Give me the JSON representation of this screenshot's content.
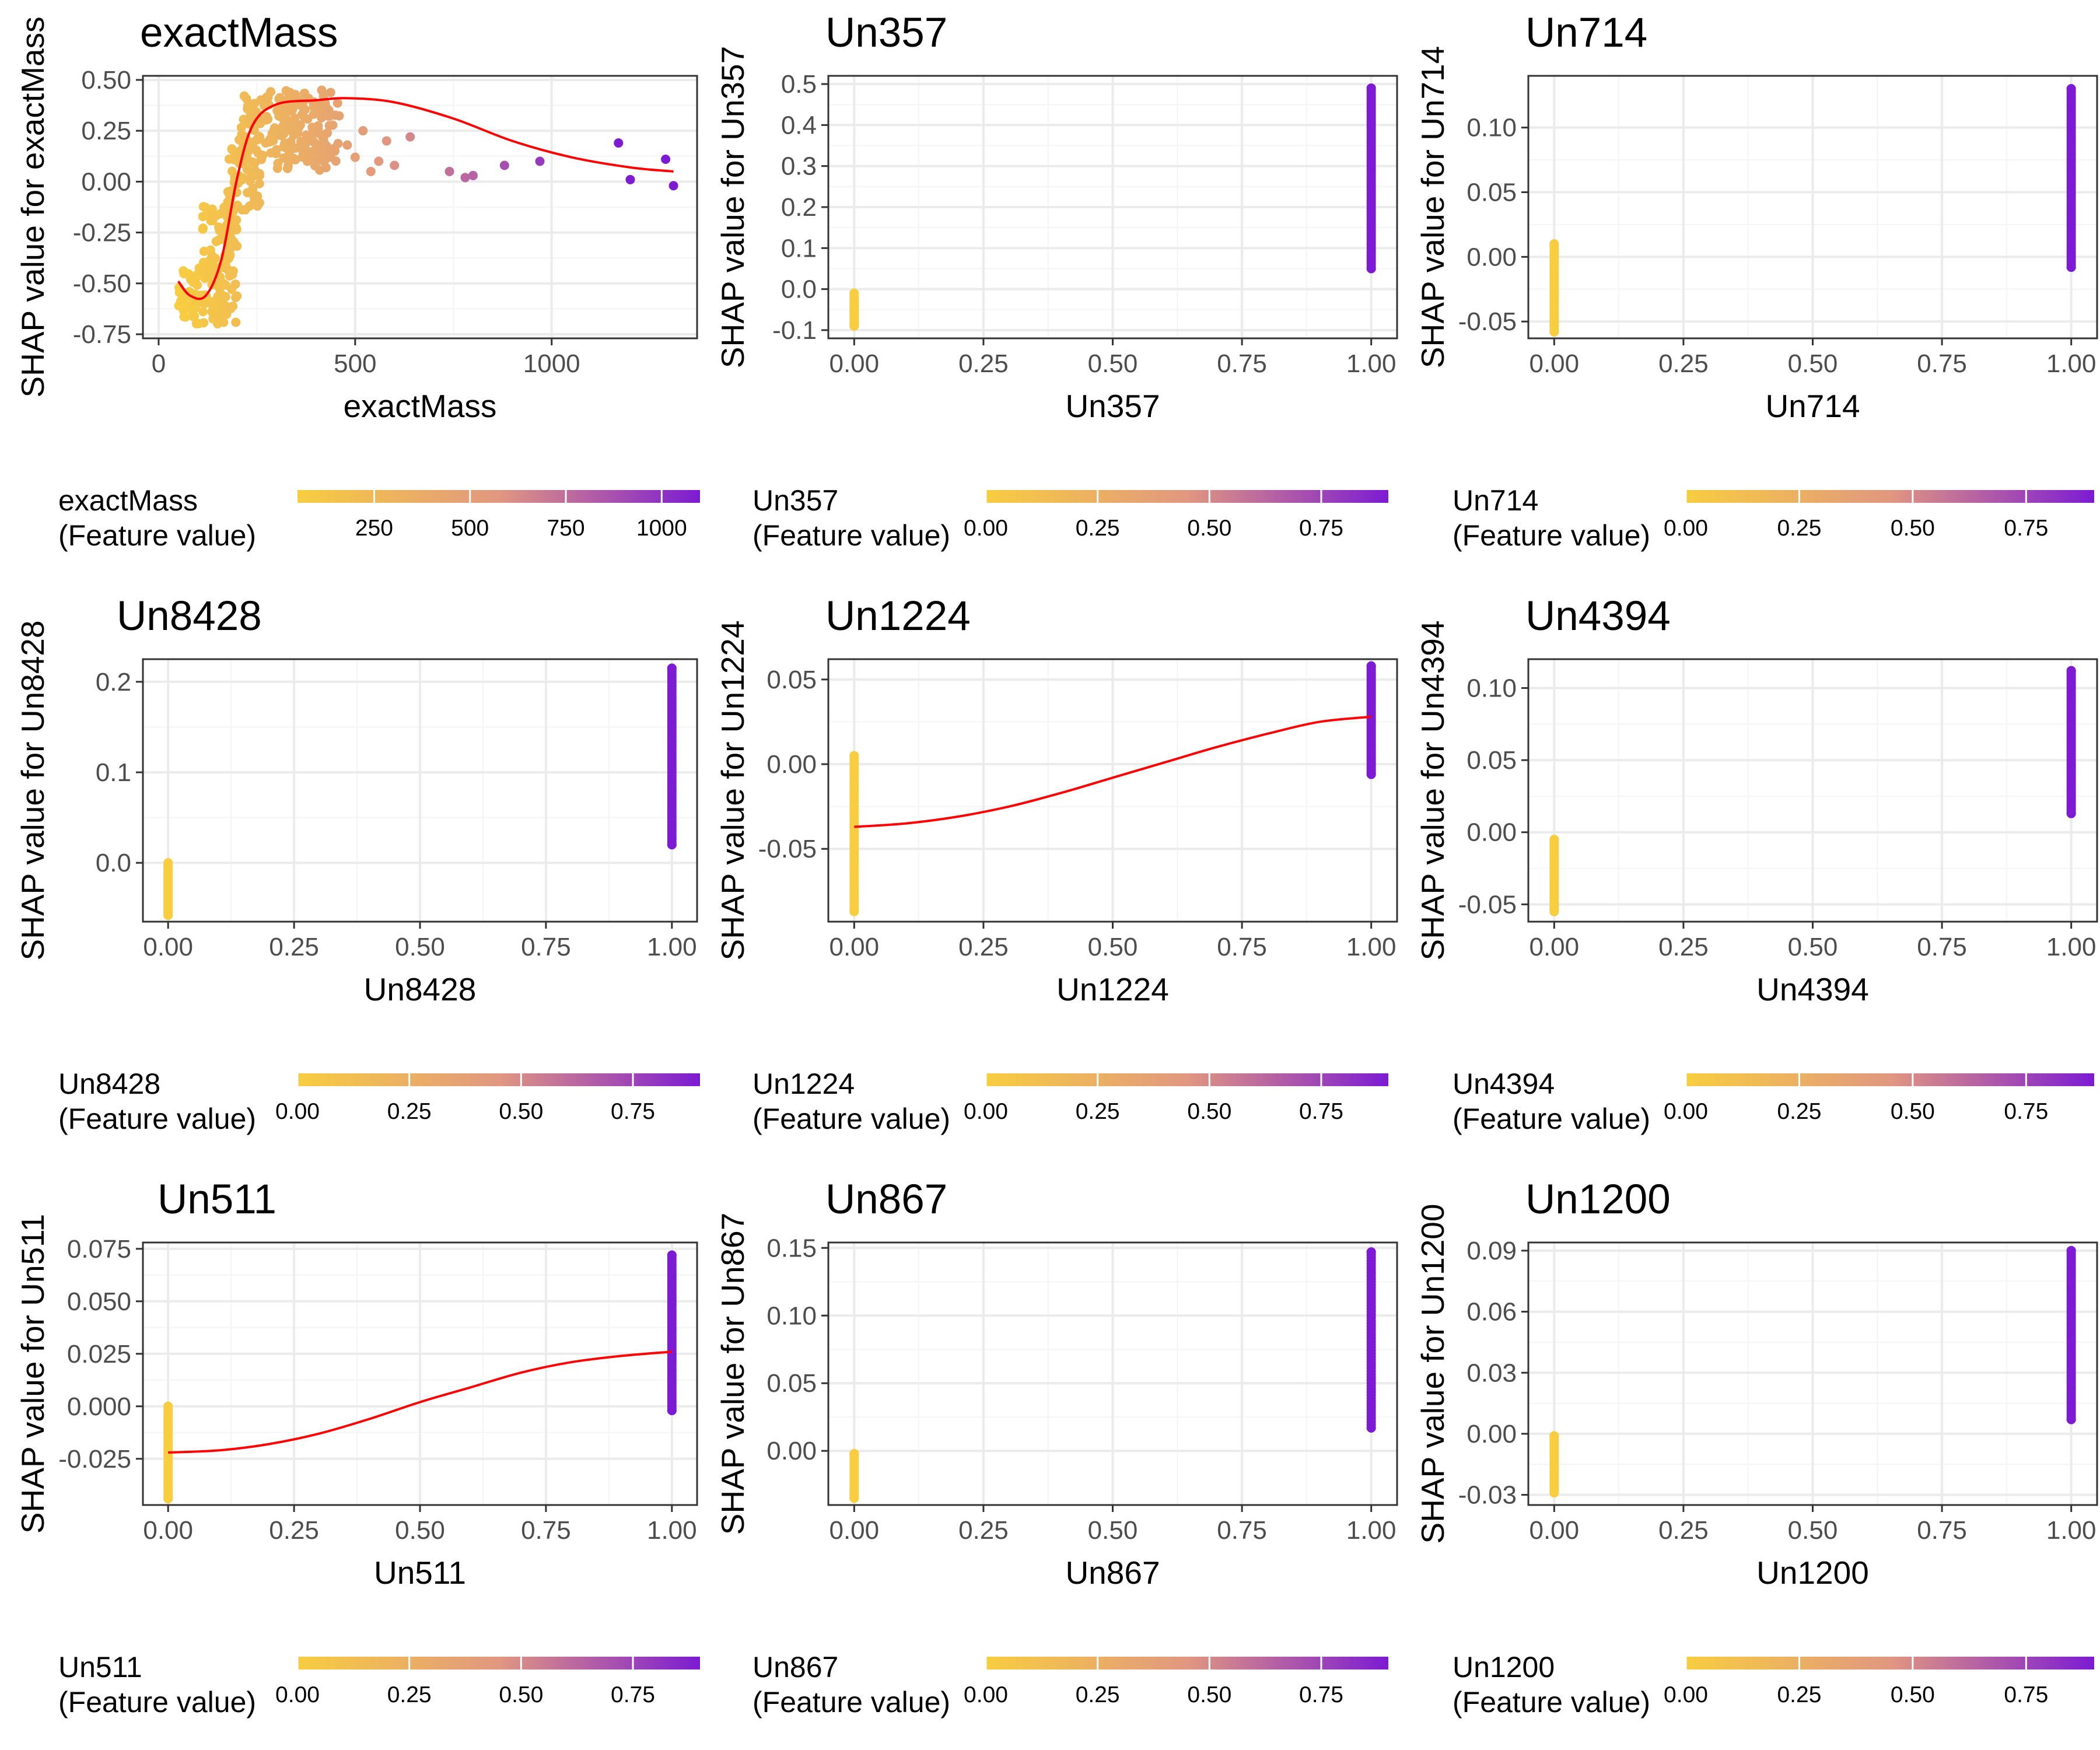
{
  "palette": {
    "low": "#F8CD40",
    "mid": "#E19780",
    "high": "#7C1BD3",
    "smooth": "#FF0000",
    "grid_major": "#EBEBEB",
    "grid_minor": "#F5F5F5",
    "panel_border": "#333333"
  },
  "chart_data": [
    {
      "type": "scatter",
      "title": "exactMass",
      "xlabel": "exactMass",
      "ylabel": "SHAP value for exactMass",
      "xlim": [
        -40,
        1370
      ],
      "ylim": [
        -0.77,
        0.52
      ],
      "x_ticks": [
        "0",
        "500",
        "1000"
      ],
      "y_ticks": [
        "-0.75",
        "-0.50",
        "-0.25",
        "0.00",
        "0.25",
        "0.50"
      ],
      "grid": true,
      "smooth_line": true,
      "points": {
        "clusters": [
          {
            "x": [
              50,
              200
            ],
            "y": [
              -0.7,
              -0.42
            ],
            "n": 110
          },
          {
            "x": [
              110,
              200
            ],
            "y": [
              -0.45,
              -0.12
            ],
            "n": 70
          },
          {
            "x": [
              175,
              260
            ],
            "y": [
              -0.15,
              0.22
            ],
            "n": 60
          },
          {
            "x": [
              210,
              440
            ],
            "y": [
              0.1,
              0.45
            ],
            "n": 170
          },
          {
            "x": [
              300,
              460
            ],
            "y": [
              0.05,
              0.4
            ],
            "n": 50
          }
        ],
        "outliers": [
          [
            480,
            0.18
          ],
          [
            500,
            0.12
          ],
          [
            520,
            0.25
          ],
          [
            540,
            0.05
          ],
          [
            560,
            0.1
          ],
          [
            580,
            0.2
          ],
          [
            600,
            0.08
          ],
          [
            640,
            0.22
          ],
          [
            740,
            0.05
          ],
          [
            780,
            0.02
          ],
          [
            800,
            0.03
          ],
          [
            880,
            0.08
          ],
          [
            970,
            0.1
          ],
          [
            1170,
            0.19
          ],
          [
            1200,
            0.01
          ],
          [
            1290,
            0.11
          ],
          [
            1310,
            -0.02
          ]
        ]
      },
      "smooth": {
        "x": [
          50,
          80,
          120,
          160,
          200,
          240,
          300,
          400,
          480,
          600,
          750,
          900,
          1050,
          1200,
          1310
        ],
        "y": [
          -0.49,
          -0.56,
          -0.56,
          -0.38,
          0.02,
          0.28,
          0.38,
          0.4,
          0.41,
          0.39,
          0.31,
          0.2,
          0.12,
          0.07,
          0.05
        ]
      },
      "legend": {
        "title_line1": "exactMass",
        "title_line2": "(Feature value)",
        "range": [
          50,
          1100
        ],
        "ticks": [
          "250",
          "500",
          "750",
          "1000"
        ],
        "tick_values": [
          250,
          500,
          750,
          1000
        ]
      }
    },
    {
      "type": "scatter",
      "title": "Un357",
      "xlabel": "Un357",
      "ylabel": "SHAP value for Un357",
      "xlim": [
        -0.05,
        1.05
      ],
      "ylim": [
        -0.12,
        0.52
      ],
      "x_ticks": [
        "0.00",
        "0.25",
        "0.50",
        "0.75",
        "1.00"
      ],
      "y_ticks": [
        "-0.1",
        "0.0",
        "0.1",
        "0.2",
        "0.3",
        "0.4",
        "0.5"
      ],
      "grid": true,
      "smooth_line": false,
      "groups": [
        {
          "x": 0,
          "y_range": [
            -0.09,
            -0.01
          ],
          "n": 40
        },
        {
          "x": 1,
          "y_range": [
            0.05,
            0.49
          ],
          "n": 70
        }
      ],
      "legend": {
        "title_line1": "Un357",
        "title_line2": "(Feature value)",
        "range": [
          0,
          0.9
        ],
        "ticks": [
          "0.00",
          "0.25",
          "0.50",
          "0.75"
        ],
        "tick_values": [
          0,
          0.25,
          0.5,
          0.75
        ]
      }
    },
    {
      "type": "scatter",
      "title": "Un714",
      "xlabel": "Un714",
      "ylabel": "SHAP value for Un714",
      "xlim": [
        -0.05,
        1.05
      ],
      "ylim": [
        -0.063,
        0.14
      ],
      "x_ticks": [
        "0.00",
        "0.25",
        "0.50",
        "0.75",
        "1.00"
      ],
      "y_ticks": [
        "-0.05",
        "0.00",
        "0.05",
        "0.10"
      ],
      "grid": true,
      "smooth_line": false,
      "groups": [
        {
          "x": 0,
          "y_range": [
            -0.058,
            0.01
          ],
          "n": 50
        },
        {
          "x": 1,
          "y_range": [
            -0.008,
            0.13
          ],
          "n": 70
        }
      ],
      "legend": {
        "title_line1": "Un714",
        "title_line2": "(Feature value)",
        "range": [
          0,
          0.9
        ],
        "ticks": [
          "0.00",
          "0.25",
          "0.50",
          "0.75"
        ],
        "tick_values": [
          0,
          0.25,
          0.5,
          0.75
        ]
      }
    },
    {
      "type": "scatter",
      "title": "Un8428",
      "xlabel": "Un8428",
      "ylabel": "SHAP value for Un8428",
      "xlim": [
        -0.05,
        1.05
      ],
      "ylim": [
        -0.065,
        0.225
      ],
      "x_ticks": [
        "0.00",
        "0.25",
        "0.50",
        "0.75",
        "1.00"
      ],
      "y_ticks": [
        "0.0",
        "0.1",
        "0.2"
      ],
      "grid": true,
      "smooth_line": false,
      "groups": [
        {
          "x": 0,
          "y_range": [
            -0.058,
            0.0
          ],
          "n": 40
        },
        {
          "x": 1,
          "y_range": [
            0.02,
            0.215
          ],
          "n": 70
        }
      ],
      "legend": {
        "title_line1": "Un8428",
        "title_line2": "(Feature value)",
        "range": [
          0,
          0.9
        ],
        "ticks": [
          "0.00",
          "0.25",
          "0.50",
          "0.75"
        ],
        "tick_values": [
          0,
          0.25,
          0.5,
          0.75
        ]
      }
    },
    {
      "type": "scatter",
      "title": "Un1224",
      "xlabel": "Un1224",
      "ylabel": "SHAP value for Un1224",
      "xlim": [
        -0.05,
        1.05
      ],
      "ylim": [
        -0.093,
        0.062
      ],
      "x_ticks": [
        "0.00",
        "0.25",
        "0.50",
        "0.75",
        "1.00"
      ],
      "y_ticks": [
        "-0.05",
        "0.00",
        "0.05"
      ],
      "grid": true,
      "smooth_line": true,
      "groups": [
        {
          "x": 0,
          "y_range": [
            -0.087,
            0.005
          ],
          "n": 60
        },
        {
          "x": 1,
          "y_range": [
            -0.006,
            0.058
          ],
          "n": 60
        }
      ],
      "smooth": {
        "x": [
          0,
          0.1,
          0.2,
          0.3,
          0.4,
          0.5,
          0.6,
          0.7,
          0.8,
          0.9,
          1.0
        ],
        "y": [
          -0.037,
          -0.035,
          -0.031,
          -0.025,
          -0.017,
          -0.008,
          0.001,
          0.01,
          0.018,
          0.025,
          0.028
        ]
      },
      "legend": {
        "title_line1": "Un1224",
        "title_line2": "(Feature value)",
        "range": [
          0,
          0.9
        ],
        "ticks": [
          "0.00",
          "0.25",
          "0.50",
          "0.75"
        ],
        "tick_values": [
          0,
          0.25,
          0.5,
          0.75
        ]
      }
    },
    {
      "type": "scatter",
      "title": "Un4394",
      "xlabel": "Un4394",
      "ylabel": "SHAP value for Un4394",
      "xlim": [
        -0.05,
        1.05
      ],
      "ylim": [
        -0.062,
        0.12
      ],
      "x_ticks": [
        "0.00",
        "0.25",
        "0.50",
        "0.75",
        "1.00"
      ],
      "y_ticks": [
        "-0.05",
        "0.00",
        "0.05",
        "0.10"
      ],
      "grid": true,
      "smooth_line": false,
      "groups": [
        {
          "x": 0,
          "y_range": [
            -0.055,
            -0.005
          ],
          "n": 45
        },
        {
          "x": 1,
          "y_range": [
            0.013,
            0.112
          ],
          "n": 70
        }
      ],
      "legend": {
        "title_line1": "Un4394",
        "title_line2": "(Feature value)",
        "range": [
          0,
          0.9
        ],
        "ticks": [
          "0.00",
          "0.25",
          "0.50",
          "0.75"
        ],
        "tick_values": [
          0,
          0.25,
          0.5,
          0.75
        ]
      }
    },
    {
      "type": "scatter",
      "title": "Un511",
      "xlabel": "Un511",
      "ylabel": "SHAP value for Un511",
      "xlim": [
        -0.05,
        1.05
      ],
      "ylim": [
        -0.047,
        0.078
      ],
      "x_ticks": [
        "0.00",
        "0.25",
        "0.50",
        "0.75",
        "1.00"
      ],
      "y_ticks": [
        "-0.025",
        "0.000",
        "0.025",
        "0.050",
        "0.075"
      ],
      "grid": true,
      "smooth_line": true,
      "groups": [
        {
          "x": 0,
          "y_range": [
            -0.044,
            0.0
          ],
          "n": 50
        },
        {
          "x": 1,
          "y_range": [
            -0.002,
            0.072
          ],
          "n": 70
        }
      ],
      "smooth": {
        "x": [
          0,
          0.1,
          0.2,
          0.3,
          0.4,
          0.5,
          0.6,
          0.7,
          0.8,
          0.9,
          1.0
        ],
        "y": [
          -0.022,
          -0.021,
          -0.018,
          -0.013,
          -0.006,
          0.002,
          0.009,
          0.016,
          0.021,
          0.024,
          0.026
        ]
      },
      "legend": {
        "title_line1": "Un511",
        "title_line2": "(Feature value)",
        "range": [
          0,
          0.9
        ],
        "ticks": [
          "0.00",
          "0.25",
          "0.50",
          "0.75"
        ],
        "tick_values": [
          0,
          0.25,
          0.5,
          0.75
        ]
      }
    },
    {
      "type": "scatter",
      "title": "Un867",
      "xlabel": "Un867",
      "ylabel": "SHAP value for Un867",
      "xlim": [
        -0.05,
        1.05
      ],
      "ylim": [
        -0.04,
        0.154
      ],
      "x_ticks": [
        "0.00",
        "0.25",
        "0.50",
        "0.75",
        "1.00"
      ],
      "y_ticks": [
        "0.00",
        "0.05",
        "0.10",
        "0.15"
      ],
      "grid": true,
      "smooth_line": false,
      "groups": [
        {
          "x": 0,
          "y_range": [
            -0.035,
            -0.002
          ],
          "n": 35
        },
        {
          "x": 1,
          "y_range": [
            0.017,
            0.147
          ],
          "n": 60
        }
      ],
      "legend": {
        "title_line1": "Un867",
        "title_line2": "(Feature value)",
        "range": [
          0,
          0.9
        ],
        "ticks": [
          "0.00",
          "0.25",
          "0.50",
          "0.75"
        ],
        "tick_values": [
          0,
          0.25,
          0.5,
          0.75
        ]
      }
    },
    {
      "type": "scatter",
      "title": "Un1200",
      "xlabel": "Un1200",
      "ylabel": "SHAP value for Un1200",
      "xlim": [
        -0.05,
        1.05
      ],
      "ylim": [
        -0.035,
        0.094
      ],
      "x_ticks": [
        "0.00",
        "0.25",
        "0.50",
        "0.75",
        "1.00"
      ],
      "y_ticks": [
        "-0.03",
        "0.00",
        "0.03",
        "0.06",
        "0.09"
      ],
      "grid": true,
      "smooth_line": false,
      "groups": [
        {
          "x": 0,
          "y_range": [
            -0.029,
            -0.001
          ],
          "n": 35
        },
        {
          "x": 1,
          "y_range": [
            0.007,
            0.09
          ],
          "n": 70
        }
      ],
      "legend": {
        "title_line1": "Un1200",
        "title_line2": "(Feature value)",
        "range": [
          0,
          0.9
        ],
        "ticks": [
          "0.00",
          "0.25",
          "0.50",
          "0.75"
        ],
        "tick_values": [
          0,
          0.25,
          0.5,
          0.75
        ]
      }
    }
  ]
}
